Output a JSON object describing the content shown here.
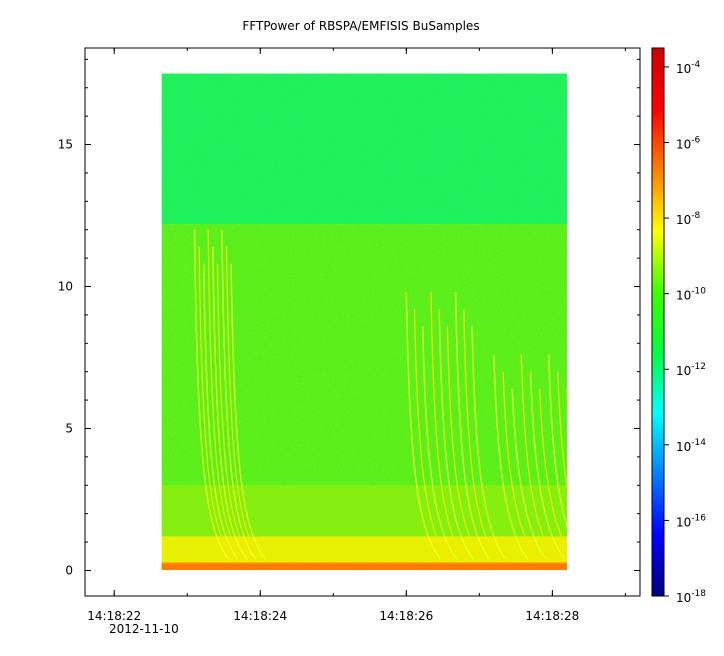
{
  "chart_data": {
    "type": "heatmap",
    "title": "FFTPower of RBSPA/EMFISIS  BuSamples",
    "xlabel": "",
    "ylabel": "",
    "x_tick_labels": [
      "14:18:22",
      "14:18:24",
      "14:18:26",
      "14:18:28"
    ],
    "x_date_label": "2012-11-10",
    "xlim": [
      "14:18:21.6",
      "14:18:29.2"
    ],
    "data_xrange": [
      "14:18:22.65",
      "14:18:28.2"
    ],
    "y_ticks": [
      0,
      5,
      10,
      15
    ],
    "ylim": [
      -0.9,
      18.4
    ],
    "data_yrange": [
      0,
      17.5
    ],
    "colorbar": {
      "scale": "log",
      "range": [
        "1e-18",
        "1e-3.5"
      ],
      "tick_labels": [
        {
          "base": "10",
          "exp": "-4"
        },
        {
          "base": "10",
          "exp": "-6"
        },
        {
          "base": "10",
          "exp": "-8"
        },
        {
          "base": "10",
          "exp": "-10"
        },
        {
          "base": "10",
          "exp": "-12"
        },
        {
          "base": "10",
          "exp": "-14"
        },
        {
          "base": "10",
          "exp": "-16"
        },
        {
          "base": "10",
          "exp": "-18"
        }
      ],
      "colors": [
        "#00007f",
        "#0000ff",
        "#007fff",
        "#00ffff",
        "#00ff3f",
        "#3fff00",
        "#ffff00",
        "#ff7f00",
        "#ff0000",
        "#cf0000"
      ]
    },
    "regions": [
      {
        "band": "0 to 0.3",
        "level": "1e-7"
      },
      {
        "band": "0.3 to 1.2",
        "level": "1e-8"
      },
      {
        "band": "1.2 to 12.2",
        "level": "1e-10"
      },
      {
        "band": "12.2 to 17.5",
        "level": "1e-12"
      }
    ],
    "emission_bursts": [
      "14:18:23.1 to 14:18:23.6",
      "14:18:26.0 to 14:18:26.9",
      "14:18:27.2 to 14:18:28.2"
    ],
    "grid": false
  }
}
